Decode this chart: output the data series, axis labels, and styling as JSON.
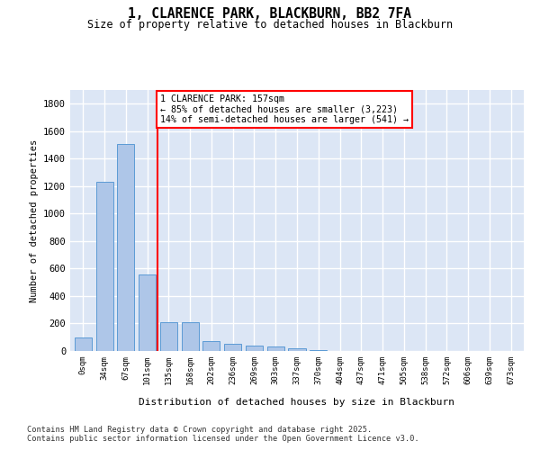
{
  "title": "1, CLARENCE PARK, BLACKBURN, BB2 7FA",
  "subtitle": "Size of property relative to detached houses in Blackburn",
  "xlabel": "Distribution of detached houses by size in Blackburn",
  "ylabel": "Number of detached properties",
  "footnote1": "Contains HM Land Registry data © Crown copyright and database right 2025.",
  "footnote2": "Contains public sector information licensed under the Open Government Licence v3.0.",
  "categories": [
    "0sqm",
    "34sqm",
    "67sqm",
    "101sqm",
    "135sqm",
    "168sqm",
    "202sqm",
    "236sqm",
    "269sqm",
    "303sqm",
    "337sqm",
    "370sqm",
    "404sqm",
    "437sqm",
    "471sqm",
    "505sqm",
    "538sqm",
    "572sqm",
    "606sqm",
    "639sqm",
    "673sqm"
  ],
  "bar_values": [
    100,
    1230,
    1510,
    560,
    210,
    210,
    75,
    50,
    40,
    30,
    20,
    5,
    0,
    0,
    0,
    0,
    0,
    0,
    0,
    0,
    0
  ],
  "bar_color": "#aec6e8",
  "bar_edge_color": "#5b9bd5",
  "background_color": "#dce6f5",
  "grid_color": "#ffffff",
  "vline_color": "red",
  "annotation_text": "1 CLARENCE PARK: 157sqm\n← 85% of detached houses are smaller (3,223)\n14% of semi-detached houses are larger (541) →",
  "annotation_box_color": "white",
  "annotation_box_edge": "red",
  "ylim": [
    0,
    1900
  ],
  "yticks": [
    0,
    200,
    400,
    600,
    800,
    1000,
    1200,
    1400,
    1600,
    1800
  ]
}
